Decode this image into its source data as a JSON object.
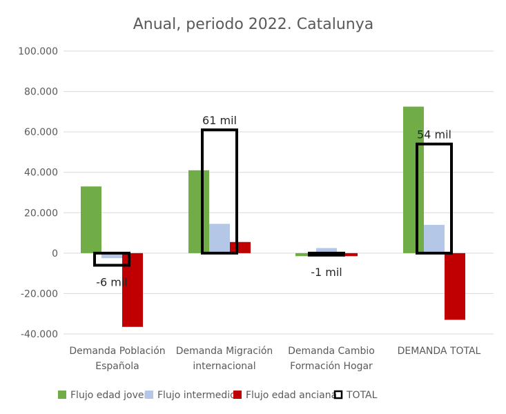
{
  "chart_data": {
    "type": "bar",
    "title": "Anual, periodo 2022. Catalunya",
    "categories": [
      [
        "Demanda Población",
        "Española"
      ],
      [
        "Demanda Migración",
        "internacional"
      ],
      [
        "Demanda Cambio",
        "Formación Hogar"
      ],
      [
        "DEMANDA TOTAL"
      ]
    ],
    "series": [
      {
        "name": "Flujo edad joven",
        "color": "#70AD47",
        "values": [
          33000,
          41000,
          -1500,
          72500
        ]
      },
      {
        "name": "Flujo intermedio",
        "color": "#B4C7E7",
        "values": [
          -2500,
          14500,
          2500,
          14000
        ]
      },
      {
        "name": "Flujo edad anciana",
        "color": "#C00000",
        "values": [
          -36500,
          5500,
          -1500,
          -33000
        ]
      },
      {
        "name": "TOTAL",
        "color": "#000000",
        "style": "outline",
        "values": [
          -6000,
          61000,
          -1000,
          54000
        ]
      }
    ],
    "data_labels": [
      "-6 mil",
      "61 mil",
      "-1 mil",
      "54 mil"
    ],
    "ylim": [
      -40000,
      100000
    ],
    "yticks": [
      -40000,
      -20000,
      0,
      20000,
      40000,
      60000,
      80000,
      100000
    ],
    "ytick_labels": [
      "-40.000",
      "-20.000",
      "0",
      "20.000",
      "40.000",
      "60.000",
      "80.000",
      "100.000"
    ],
    "grid": true,
    "legend_position": "bottom"
  }
}
